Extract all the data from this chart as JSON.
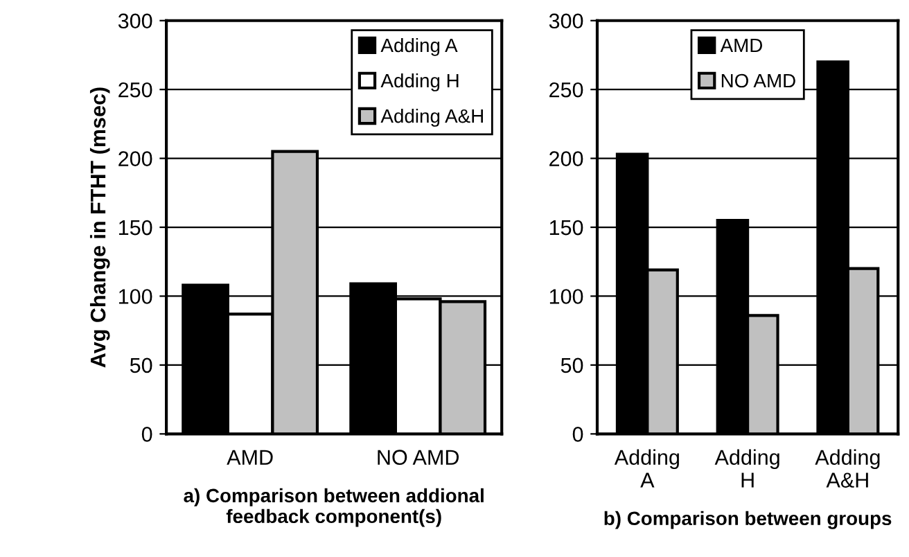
{
  "chart_data": [
    {
      "type": "bar",
      "categories": [
        "AMD",
        "NO AMD"
      ],
      "ylabel": "Avg Change in FTHT (msec)",
      "xlabel": "a) Comparison between addional\nfeedback component(s)",
      "ylim": [
        0,
        300
      ],
      "yticks": [
        0,
        50,
        100,
        150,
        200,
        250,
        300
      ],
      "grid": "y",
      "legend": "top right",
      "series": [
        {
          "name": "Adding A",
          "color": "#000000",
          "values": [
            108,
            109
          ]
        },
        {
          "name": "Adding H",
          "color": "#ffffff",
          "values": [
            87,
            98
          ]
        },
        {
          "name": "Adding A&H",
          "color": "#c0c0c0",
          "values": [
            205,
            96
          ]
        }
      ]
    },
    {
      "type": "bar",
      "categories": [
        "Adding A",
        "Adding H",
        "Adding A&H"
      ],
      "xlabel": "b) Comparison between groups",
      "ylim": [
        0,
        300
      ],
      "yticks": [
        0,
        50,
        100,
        150,
        200,
        250,
        300
      ],
      "grid": "y",
      "legend": "top",
      "series": [
        {
          "name": "AMD",
          "color": "#000000",
          "values": [
            203,
            155,
            270
          ]
        },
        {
          "name": "NO AMD",
          "color": "#c0c0c0",
          "values": [
            119,
            86,
            120
          ]
        }
      ]
    }
  ]
}
